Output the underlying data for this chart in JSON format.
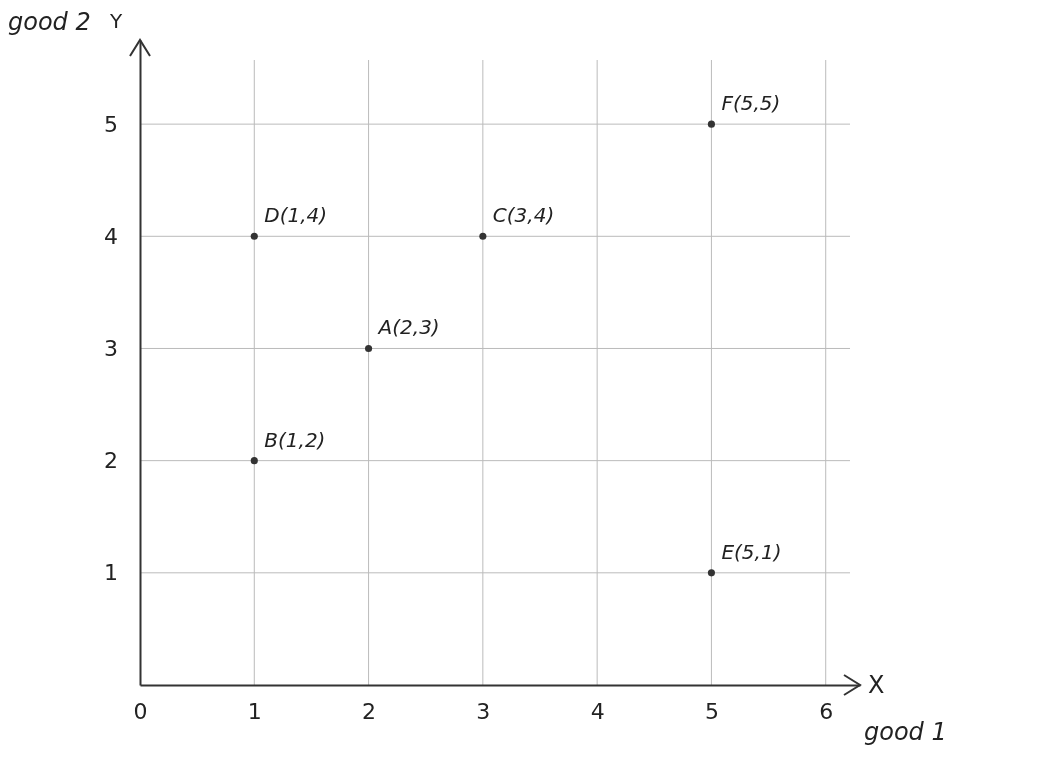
{
  "chart_data": {
    "type": "scatter",
    "xlabel": "good 1",
    "ylabel": "good 2",
    "x": [
      2,
      1,
      3,
      1,
      5,
      5
    ],
    "series": [
      {
        "color": "#333333",
        "values": [
          3,
          2,
          4,
          4,
          1,
          5
        ]
      }
    ],
    "xlim": [
      0,
      6.3
    ],
    "ylim": [
      0,
      5.75
    ],
    "xticks": [
      0,
      1,
      2,
      3,
      4,
      5,
      6
    ],
    "yticks": [
      1,
      2,
      3,
      4,
      5
    ],
    "grid": true,
    "marker": "circle",
    "annotations": [
      {
        "text": "A(2,3)",
        "x": 2,
        "y": 3
      },
      {
        "text": "B(1,2)",
        "x": 1,
        "y": 2
      },
      {
        "text": "C(3,4)",
        "x": 3,
        "y": 4
      },
      {
        "text": "D(1,4)",
        "x": 1,
        "y": 4
      },
      {
        "text": "E(5,1)",
        "x": 5,
        "y": 1
      },
      {
        "text": "F(5,5)",
        "x": 5,
        "y": 5
      },
      "X",
      "Y"
    ]
  }
}
